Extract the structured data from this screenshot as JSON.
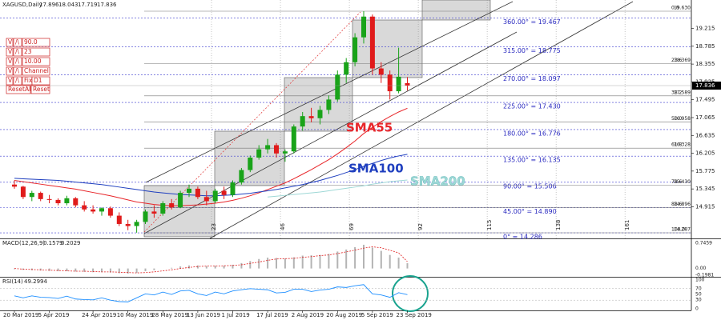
{
  "controls": {
    "down": "V",
    "up": "/\\",
    "rows": [
      "90.0",
      "23",
      "10.00",
      "Channel",
      "D1"
    ],
    "fix": "Fix",
    "reset_all": "ResetAll",
    "reset": "Reset"
  },
  "chart_data": [
    {
      "type": "candlestick",
      "title": "XAGUSD,Daily",
      "categories": [
        "20 Mar 2019",
        null,
        null,
        null,
        "5 Apr 2019",
        null,
        null,
        null,
        null,
        "24 Apr 2019",
        null,
        null,
        null,
        "10 May 2019",
        null,
        null,
        null,
        "28 May 2019",
        null,
        null,
        null,
        "13 Jun 2019",
        null,
        null,
        null,
        "1 Jul 2019",
        null,
        null,
        null,
        "17 Jul 2019",
        null,
        null,
        null,
        "2 Aug 2019",
        null,
        null,
        null,
        "20 Aug 2019",
        null,
        null,
        null,
        "5 Sep 2019",
        null,
        null,
        null,
        "23 Sep 2019"
      ],
      "open": [
        15.45,
        15.4,
        15.15,
        15.25,
        15.1,
        15.08,
        15.0,
        15.12,
        14.95,
        14.85,
        14.8,
        14.88,
        14.7,
        14.5,
        14.45,
        14.55,
        14.8,
        14.75,
        15.0,
        14.9,
        15.25,
        15.35,
        15.15,
        15.05,
        15.3,
        15.2,
        15.5,
        15.8,
        16.1,
        16.3,
        16.4,
        16.2,
        16.25,
        16.85,
        17.1,
        17.05,
        17.25,
        17.5,
        18.1,
        18.4,
        19.0,
        19.5,
        18.25,
        18.1,
        17.7,
        17.896
      ],
      "high": [
        15.55,
        15.42,
        15.3,
        15.28,
        15.2,
        15.12,
        15.18,
        15.15,
        15.05,
        14.95,
        14.9,
        14.92,
        14.78,
        14.6,
        14.6,
        14.85,
        14.95,
        15.05,
        15.1,
        15.3,
        15.45,
        15.4,
        15.3,
        15.35,
        15.4,
        15.55,
        15.85,
        16.15,
        16.4,
        16.55,
        16.45,
        16.3,
        16.9,
        17.2,
        17.3,
        17.35,
        17.6,
        18.2,
        18.5,
        19.1,
        19.63,
        19.55,
        18.4,
        18.2,
        18.75,
        18.043
      ],
      "low": [
        15.35,
        15.1,
        15.05,
        15.05,
        15.0,
        14.95,
        14.95,
        14.9,
        14.8,
        14.75,
        14.7,
        14.65,
        14.45,
        14.35,
        14.29,
        14.5,
        14.65,
        14.7,
        14.85,
        14.88,
        15.15,
        15.1,
        14.95,
        15.0,
        15.1,
        15.15,
        15.45,
        15.75,
        16.05,
        16.2,
        16.1,
        16.0,
        16.2,
        16.75,
        16.95,
        16.9,
        17.15,
        17.45,
        17.9,
        18.3,
        18.85,
        18.1,
        17.9,
        17.5,
        17.65,
        17.719
      ],
      "close": [
        15.4,
        15.15,
        15.25,
        15.1,
        15.08,
        15.0,
        15.12,
        14.95,
        14.85,
        14.8,
        14.88,
        14.7,
        14.5,
        14.45,
        14.55,
        14.8,
        14.75,
        15.0,
        14.9,
        15.25,
        15.35,
        15.15,
        15.05,
        15.3,
        15.2,
        15.5,
        15.8,
        16.1,
        16.3,
        16.4,
        16.2,
        16.25,
        16.85,
        17.1,
        17.05,
        17.25,
        17.5,
        18.1,
        18.4,
        19.0,
        19.5,
        18.25,
        18.1,
        17.7,
        18.05,
        17.836
      ],
      "up_color": "#19a319",
      "down_color": "#e01b1b",
      "series": [
        {
          "name": "SMA55",
          "color": "#e8262a",
          "values": [
            15.55,
            15.52,
            15.49,
            15.46,
            15.43,
            15.4,
            15.37,
            15.34,
            15.3,
            15.26,
            15.22,
            15.18,
            15.13,
            15.08,
            15.03,
            15.0,
            14.97,
            14.95,
            14.94,
            14.94,
            14.95,
            14.96,
            14.98,
            15.0,
            15.03,
            15.07,
            15.12,
            15.18,
            15.25,
            15.33,
            15.41,
            15.49,
            15.59,
            15.7,
            15.81,
            15.93,
            16.05,
            16.19,
            16.34,
            16.5,
            16.68,
            16.83,
            16.97,
            17.09,
            17.2,
            17.29
          ]
        },
        {
          "name": "SMA100",
          "color": "#1f3fbf",
          "values": [
            15.6,
            15.59,
            15.58,
            15.57,
            15.56,
            15.55,
            15.53,
            15.51,
            15.49,
            15.47,
            15.45,
            15.42,
            15.39,
            15.36,
            15.33,
            15.3,
            15.27,
            15.25,
            15.23,
            15.21,
            15.2,
            15.19,
            15.18,
            15.18,
            15.19,
            15.2,
            15.22,
            15.24,
            15.27,
            15.3,
            15.33,
            15.37,
            15.41,
            15.45,
            15.5,
            15.55,
            15.61,
            15.67,
            15.74,
            15.81,
            15.89,
            15.96,
            16.03,
            16.09,
            16.14,
            16.18
          ]
        },
        {
          "name": "SMA200",
          "color": "#9ed8d6",
          "values": [
            null,
            null,
            null,
            null,
            null,
            null,
            null,
            null,
            null,
            null,
            null,
            null,
            null,
            null,
            null,
            null,
            null,
            null,
            null,
            null,
            null,
            null,
            null,
            null,
            null,
            null,
            null,
            null,
            null,
            15.15,
            15.17,
            15.19,
            15.21,
            15.23,
            15.25,
            15.27,
            15.3,
            15.33,
            15.36,
            15.39,
            15.42,
            15.46,
            15.49,
            15.52,
            15.54,
            15.56
          ]
        }
      ],
      "ylim": [
        14.152,
        19.9
      ],
      "yticks": [
        19.215,
        18.785,
        18.355,
        17.925,
        17.495,
        17.065,
        16.635,
        16.205,
        15.775,
        15.345,
        14.915
      ],
      "fib_levels": [
        {
          "ratio": "0.0",
          "price": {
            "value": 19.63,
            "label": "19.630"
          }
        },
        {
          "ratio": "23.6",
          "price": 18.369
        },
        {
          "ratio": "38.2",
          "price": 17.589
        },
        {
          "ratio": "50.0",
          "price": 16.958
        },
        {
          "ratio": "61.8",
          "price": 16.328
        },
        {
          "ratio": "78.6",
          "price": {
            "value": 15.43,
            "label": "15.430"
          }
        },
        {
          "ratio": "88.6",
          "price": 14.896
        },
        {
          "ratio": "100.0",
          "price": 14.287
        }
      ],
      "gann_levels": [
        {
          "value": 19.467,
          "label": "360.00° = 19.467"
        },
        {
          "value": 18.775,
          "label": "315.00° = 18.775"
        },
        {
          "value": 18.097,
          "label": "270.00° = 18.097"
        },
        {
          "value": 17.43,
          "label": "225.00° = 17.430"
        },
        {
          "value": 16.776,
          "label": "180.00° = 16.776"
        },
        {
          "value": 16.135,
          "label": "135.00° = 16.135"
        },
        {
          "value": 15.506,
          "label": "90.00° = 15.506"
        },
        {
          "value": 14.89,
          "label": "45.00° = 14.890"
        },
        {
          "value": 14.286,
          "label": "0° = 14.286"
        }
      ],
      "cycles": [
        23,
        46,
        69,
        92,
        115,
        138,
        161
      ]
    },
    {
      "type": "macd",
      "title": "MACD(12,26,9)",
      "values": [
        -0.02,
        -0.04,
        -0.05,
        -0.06,
        -0.07,
        -0.08,
        -0.08,
        -0.09,
        -0.1,
        -0.11,
        -0.11,
        -0.12,
        -0.14,
        -0.15,
        -0.13,
        -0.08,
        -0.05,
        0,
        0.02,
        0.06,
        0.09,
        0.09,
        0.07,
        0.08,
        0.08,
        0.11,
        0.16,
        0.22,
        0.28,
        0.32,
        0.31,
        0.29,
        0.33,
        0.38,
        0.39,
        0.4,
        0.43,
        0.5,
        0.56,
        0.63,
        0.7,
        0.62,
        0.52,
        0.4,
        0.32,
        0.1579
      ],
      "signal": [
        0,
        -0.02,
        -0.03,
        -0.04,
        -0.05,
        -0.06,
        -0.07,
        -0.08,
        -0.08,
        -0.09,
        -0.1,
        -0.1,
        -0.11,
        -0.12,
        -0.13,
        -0.12,
        -0.1,
        -0.07,
        -0.04,
        0,
        0.03,
        0.06,
        0.07,
        0.07,
        0.08,
        0.09,
        0.11,
        0.15,
        0.19,
        0.24,
        0.28,
        0.29,
        0.3,
        0.33,
        0.35,
        0.38,
        0.4,
        0.44,
        0.49,
        0.54,
        0.6,
        0.64,
        0.61,
        0.54,
        0.46,
        0.2029
      ],
      "color": "#b4b4b4",
      "signal_color": "#e02020",
      "ylim": [
        -0.1981,
        0.7459
      ],
      "yticks": [
        0.7459,
        {
          "value": 0,
          "label": "0.00"
        },
        -0.1981
      ]
    },
    {
      "type": "line",
      "title": "RSI(14)",
      "values": [
        45,
        38,
        45,
        40,
        39,
        36,
        44,
        34,
        32,
        31,
        38,
        30,
        25,
        24,
        38,
        52,
        48,
        58,
        50,
        62,
        64,
        52,
        46,
        58,
        52,
        62,
        66,
        70,
        68,
        66,
        55,
        57,
        68,
        68,
        60,
        65,
        68,
        76,
        74,
        80,
        84,
        52,
        48,
        40,
        56,
        49.2994
      ],
      "color": "#1e8fff",
      "ylim": [
        0,
        100
      ],
      "yticks": [
        100,
        70,
        50,
        30,
        0
      ],
      "levels": [
        70,
        30
      ]
    }
  ]
}
